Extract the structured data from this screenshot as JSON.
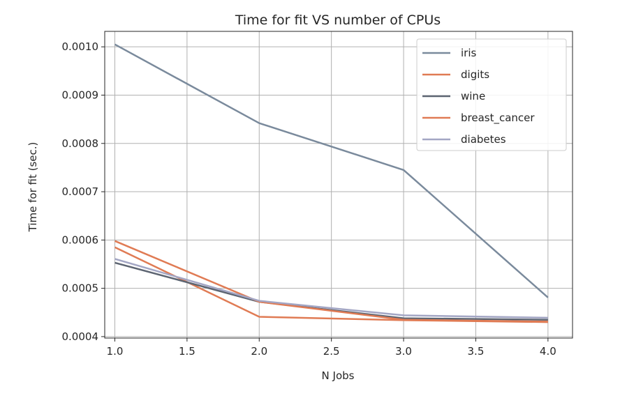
{
  "chart_data": {
    "type": "line",
    "title": "Time for fit VS number of CPUs",
    "xlabel": "N Jobs",
    "ylabel": "Time for fit (sec.)",
    "xlim": [
      0.93,
      4.17
    ],
    "ylim": [
      0.000397,
      0.001032
    ],
    "xticks": [
      1.0,
      1.5,
      2.0,
      2.5,
      3.0,
      3.5,
      4.0
    ],
    "xtick_labels": [
      "1.0",
      "1.5",
      "2.0",
      "2.5",
      "3.0",
      "3.5",
      "4.0"
    ],
    "yticks": [
      0.0004,
      0.0005,
      0.0006,
      0.0007,
      0.0008,
      0.0009,
      0.001
    ],
    "ytick_labels": [
      "0.0004",
      "0.0005",
      "0.0006",
      "0.0007",
      "0.0008",
      "0.0009",
      "0.0010"
    ],
    "grid": true,
    "legend_position": "top-right",
    "x": [
      1.0,
      2.0,
      3.0,
      4.0
    ],
    "series": [
      {
        "name": "iris",
        "color": "#7a8a9c",
        "values": [
          0.001005,
          0.000842,
          0.000745,
          0.000481
        ]
      },
      {
        "name": "digits",
        "color": "#e07b54",
        "values": [
          0.000585,
          0.000441,
          0.000434,
          0.00043
        ]
      },
      {
        "name": "wine",
        "color": "#5d6572",
        "values": [
          0.000553,
          0.000472,
          0.000438,
          0.000435
        ]
      },
      {
        "name": "breast_cancer",
        "color": "#e07b54",
        "values": [
          0.000598,
          0.000472,
          0.000435,
          0.000431
        ]
      },
      {
        "name": "diabetes",
        "color": "#a3a6c4",
        "values": [
          0.000561,
          0.000474,
          0.000444,
          0.000439
        ]
      }
    ]
  }
}
